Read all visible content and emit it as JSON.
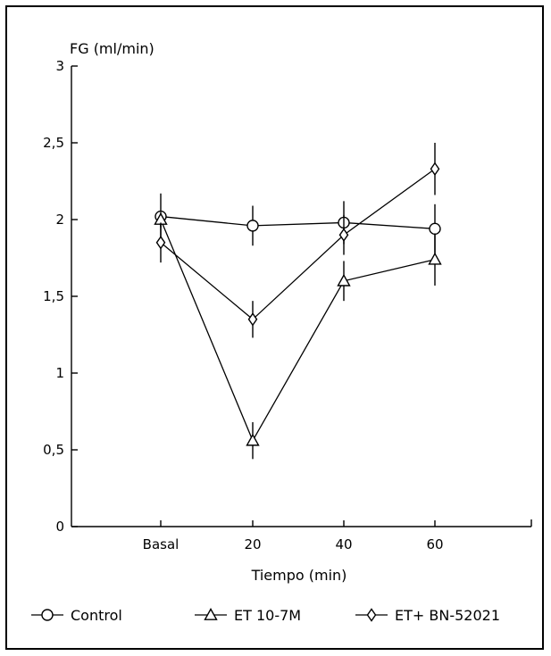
{
  "chart_data": {
    "type": "line",
    "ylabel": "FG (ml/min)",
    "xlabel": "Tiempo (min)",
    "categories": [
      "Basal",
      "20",
      "40",
      "60"
    ],
    "ylim": [
      0,
      3
    ],
    "y_ticks": [
      "0",
      "0,5",
      "1",
      "1,5",
      "2",
      "2,5",
      "3"
    ],
    "grid": false,
    "legend_position": "bottom",
    "series": [
      {
        "name": "Control",
        "marker": "circle",
        "values": [
          2.02,
          1.96,
          1.98,
          1.94
        ],
        "errors": [
          0.15,
          0.13,
          0.14,
          0.16
        ]
      },
      {
        "name": "ET 10-7M",
        "marker": "triangle",
        "values": [
          2.0,
          0.56,
          1.6,
          1.74
        ],
        "errors": [
          0.05,
          0.12,
          0.13,
          0.17
        ]
      },
      {
        "name": "ET+ BN-52021",
        "marker": "diamond",
        "values": [
          1.85,
          1.35,
          1.9,
          2.33
        ],
        "errors": [
          0.13,
          0.12,
          0.13,
          0.17
        ]
      }
    ]
  }
}
